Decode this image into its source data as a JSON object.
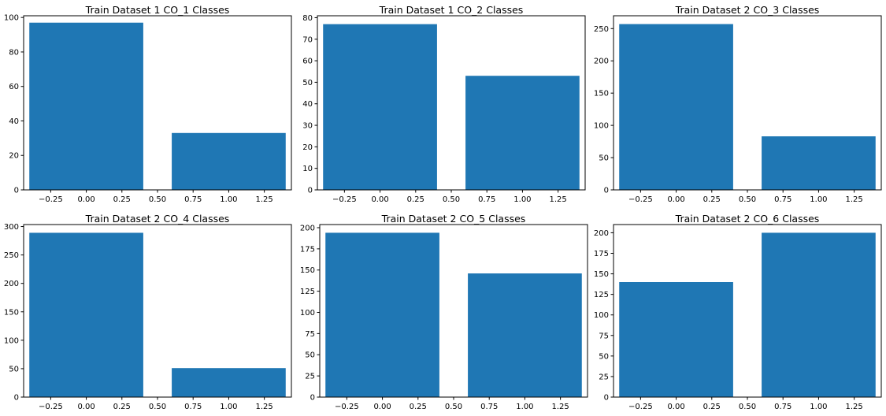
{
  "chart_data": [
    {
      "type": "bar",
      "title": "Train Dataset 1 CO_1 Classes",
      "x": [
        0,
        1
      ],
      "values": [
        97,
        33
      ],
      "bar_width": 0.8,
      "xlim": [
        -0.44,
        1.44
      ],
      "ylim": [
        0,
        101
      ],
      "xticks": [
        -0.25,
        0.0,
        0.25,
        0.5,
        0.75,
        1.0,
        1.25
      ],
      "xtick_labels": [
        "−0.25",
        "0.00",
        "0.25",
        "0.50",
        "0.75",
        "1.00",
        "1.25"
      ],
      "yticks": [
        0,
        20,
        40,
        60,
        80,
        100
      ],
      "ytick_labels": [
        "0",
        "20",
        "40",
        "60",
        "80",
        "100"
      ],
      "color": "#1f77b4",
      "xlabel": "",
      "ylabel": ""
    },
    {
      "type": "bar",
      "title": "Train Dataset 1 CO_2 Classes",
      "x": [
        0,
        1
      ],
      "values": [
        77,
        53
      ],
      "bar_width": 0.8,
      "xlim": [
        -0.44,
        1.44
      ],
      "ylim": [
        0,
        80.9
      ],
      "xticks": [
        -0.25,
        0.0,
        0.25,
        0.5,
        0.75,
        1.0,
        1.25
      ],
      "xtick_labels": [
        "−0.25",
        "0.00",
        "0.25",
        "0.50",
        "0.75",
        "1.00",
        "1.25"
      ],
      "yticks": [
        0,
        10,
        20,
        30,
        40,
        50,
        60,
        70,
        80
      ],
      "ytick_labels": [
        "0",
        "10",
        "20",
        "30",
        "40",
        "50",
        "60",
        "70",
        "80"
      ],
      "color": "#1f77b4",
      "xlabel": "",
      "ylabel": ""
    },
    {
      "type": "bar",
      "title": "Train Dataset 2 CO_3 Classes",
      "x": [
        0,
        1
      ],
      "values": [
        257,
        83
      ],
      "bar_width": 0.8,
      "xlim": [
        -0.44,
        1.44
      ],
      "ylim": [
        0,
        269.9
      ],
      "xticks": [
        -0.25,
        0.0,
        0.25,
        0.5,
        0.75,
        1.0,
        1.25
      ],
      "xtick_labels": [
        "−0.25",
        "0.00",
        "0.25",
        "0.50",
        "0.75",
        "1.00",
        "1.25"
      ],
      "yticks": [
        0,
        50,
        100,
        150,
        200,
        250
      ],
      "ytick_labels": [
        "0",
        "50",
        "100",
        "150",
        "200",
        "250"
      ],
      "color": "#1f77b4",
      "xlabel": "",
      "ylabel": ""
    },
    {
      "type": "bar",
      "title": "Train Dataset 2 CO_4 Classes",
      "x": [
        0,
        1
      ],
      "values": [
        289,
        51
      ],
      "bar_width": 0.8,
      "xlim": [
        -0.44,
        1.44
      ],
      "ylim": [
        0,
        303.5
      ],
      "xticks": [
        -0.25,
        0.0,
        0.25,
        0.5,
        0.75,
        1.0,
        1.25
      ],
      "xtick_labels": [
        "−0.25",
        "0.00",
        "0.25",
        "0.50",
        "0.75",
        "1.00",
        "1.25"
      ],
      "yticks": [
        0,
        50,
        100,
        150,
        200,
        250,
        300
      ],
      "ytick_labels": [
        "0",
        "50",
        "100",
        "150",
        "200",
        "250",
        "300"
      ],
      "color": "#1f77b4",
      "xlabel": "",
      "ylabel": ""
    },
    {
      "type": "bar",
      "title": "Train Dataset 2 CO_5 Classes",
      "x": [
        0,
        1
      ],
      "values": [
        194,
        146
      ],
      "bar_width": 0.8,
      "xlim": [
        -0.44,
        1.44
      ],
      "ylim": [
        0,
        203.7
      ],
      "xticks": [
        -0.25,
        0.0,
        0.25,
        0.5,
        0.75,
        1.0,
        1.25
      ],
      "xtick_labels": [
        "−0.25",
        "0.00",
        "0.25",
        "0.50",
        "0.75",
        "1.00",
        "1.25"
      ],
      "yticks": [
        0,
        25,
        50,
        75,
        100,
        125,
        150,
        175,
        200
      ],
      "ytick_labels": [
        "0",
        "25",
        "50",
        "75",
        "100",
        "125",
        "150",
        "175",
        "200"
      ],
      "color": "#1f77b4",
      "xlabel": "",
      "ylabel": ""
    },
    {
      "type": "bar",
      "title": "Train Dataset 2 CO_6 Classes",
      "x": [
        0,
        1
      ],
      "values": [
        140,
        200
      ],
      "bar_width": 0.8,
      "xlim": [
        -0.44,
        1.44
      ],
      "ylim": [
        0,
        210
      ],
      "xticks": [
        -0.25,
        0.0,
        0.25,
        0.5,
        0.75,
        1.0,
        1.25
      ],
      "xtick_labels": [
        "−0.25",
        "0.00",
        "0.25",
        "0.50",
        "0.75",
        "1.00",
        "1.25"
      ],
      "yticks": [
        0,
        25,
        50,
        75,
        100,
        125,
        150,
        175,
        200
      ],
      "ytick_labels": [
        "0",
        "25",
        "50",
        "75",
        "100",
        "125",
        "150",
        "175",
        "200"
      ],
      "color": "#1f77b4",
      "xlabel": "",
      "ylabel": ""
    }
  ]
}
